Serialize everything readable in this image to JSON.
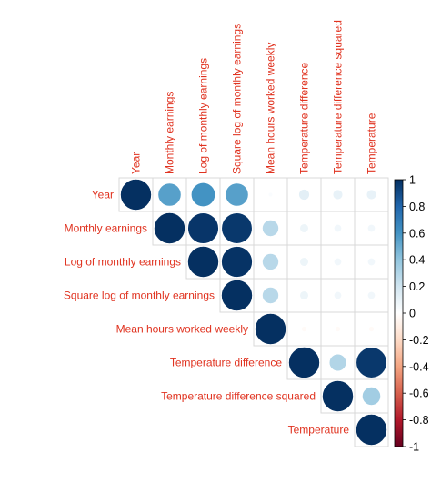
{
  "chart_data": {
    "type": "heatmap",
    "variables": [
      "Year",
      "Monthly earnings",
      "Log of monthly earnings",
      "Square log of monthly earnings",
      "Mean hours worked weekly",
      "Temperature difference",
      "Temperature difference squared",
      "Temperature"
    ],
    "layout": "upper-triangle",
    "glyph": "circle",
    "label_color": "#e0321f",
    "matrix": [
      [
        1.0,
        0.55,
        0.6,
        0.55,
        0.02,
        0.12,
        0.1,
        0.1
      ],
      [
        null,
        1.0,
        0.98,
        0.97,
        0.28,
        0.08,
        0.06,
        0.06
      ],
      [
        null,
        null,
        1.0,
        0.99,
        0.28,
        0.08,
        0.06,
        0.06
      ],
      [
        null,
        null,
        null,
        1.0,
        0.28,
        0.08,
        0.06,
        0.06
      ],
      [
        null,
        null,
        null,
        null,
        1.0,
        -0.03,
        -0.03,
        -0.03
      ],
      [
        null,
        null,
        null,
        null,
        null,
        1.0,
        0.3,
        0.97
      ],
      [
        null,
        null,
        null,
        null,
        null,
        null,
        1.0,
        0.35
      ],
      [
        null,
        null,
        null,
        null,
        null,
        null,
        null,
        1.0
      ]
    ],
    "colorbar": {
      "ticks": [
        "1",
        "0.8",
        "0.6",
        "0.4",
        "0.2",
        "0",
        "-0.2",
        "-0.4",
        "-0.6",
        "-0.8",
        "-1"
      ],
      "range": [
        -1,
        1
      ],
      "colors": {
        "neg_end": "#67001f",
        "neg_mid": "#d6604d",
        "neg_light": "#fddbc7",
        "zero": "#ffffff",
        "pos_light": "#d1e5f0",
        "pos_mid": "#4393c3",
        "pos_end": "#053061"
      }
    }
  }
}
